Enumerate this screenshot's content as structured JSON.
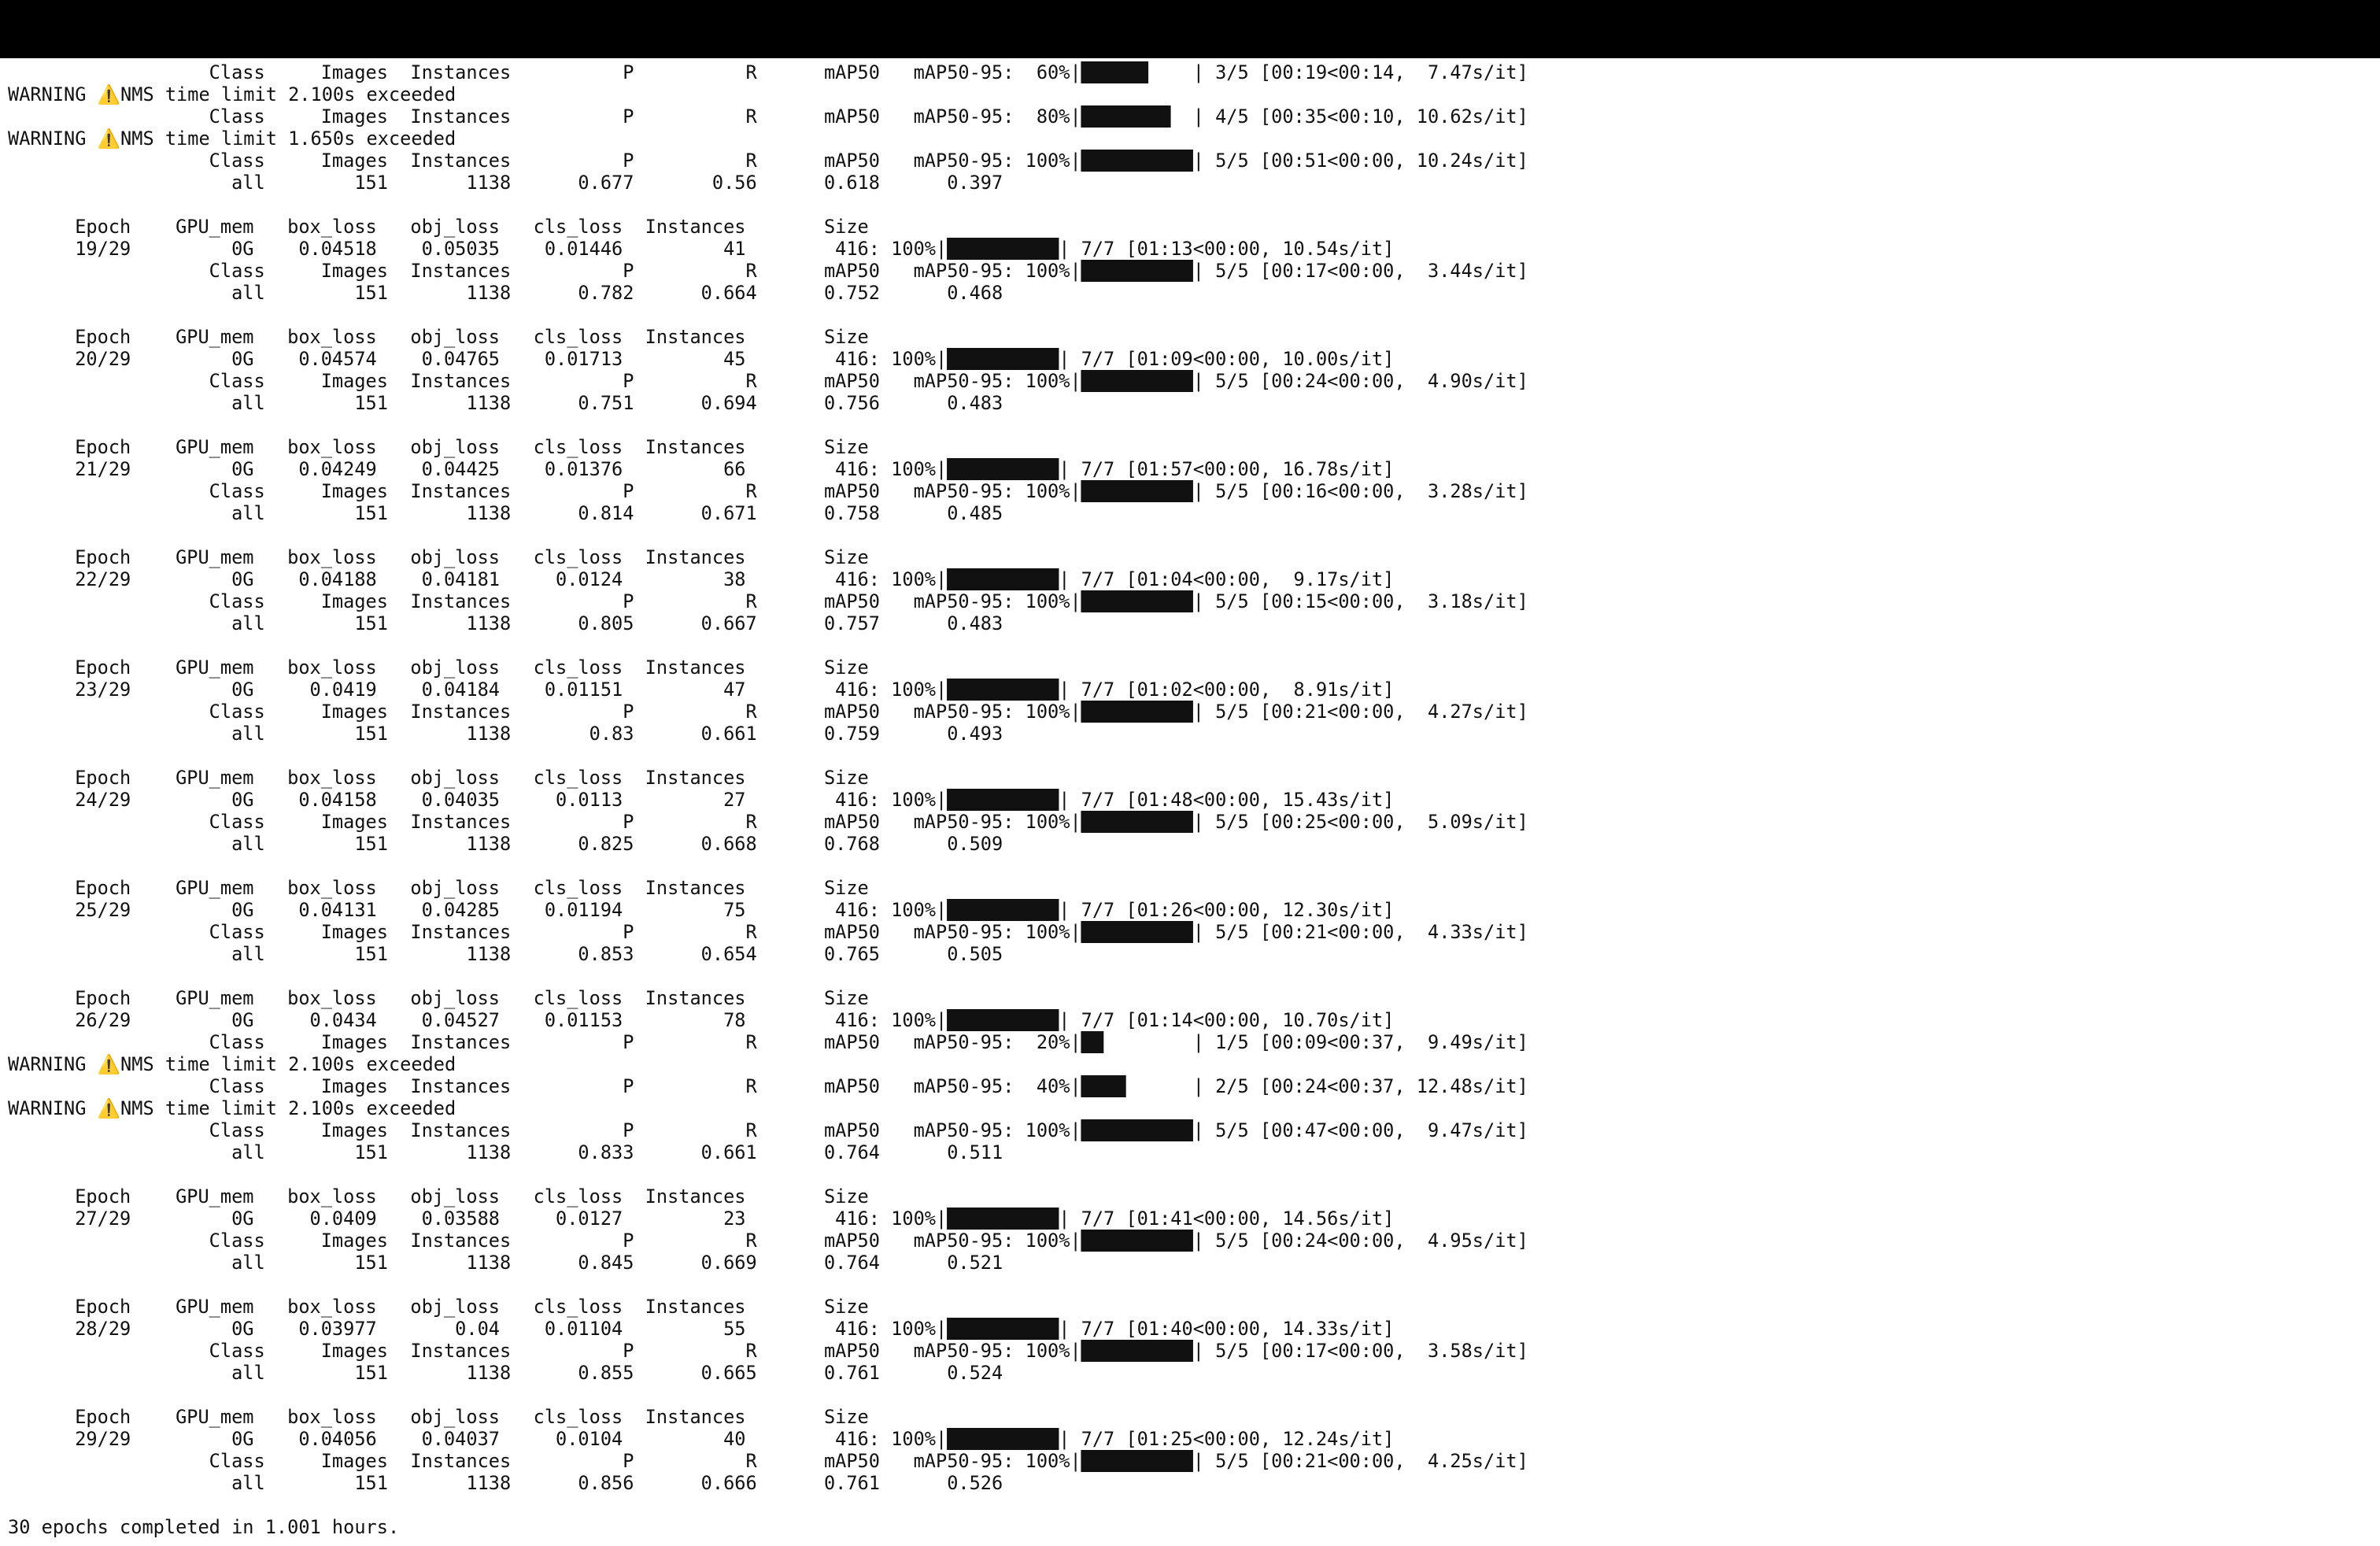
{
  "theme": {
    "topbar": "#000000",
    "background": "#ffffff",
    "text": "#111111",
    "warning_icon": "#e0a800"
  },
  "icons": {
    "warning": "warning-triangle-icon"
  },
  "lines": [
    {
      "text": "                  Class     Images  Instances          P          R      mAP50   mAP50-95:  60%|██████    | 3/5 [00:19<00:14,  7.47s/it]"
    },
    {
      "pre": "WARNING ",
      "icon": "⚠️",
      "text": "NMS time limit 2.100s exceeded"
    },
    {
      "text": "                  Class     Images  Instances          P          R      mAP50   mAP50-95:  80%|████████  | 4/5 [00:35<00:10, 10.62s/it]"
    },
    {
      "pre": "WARNING ",
      "icon": "⚠️",
      "text": "NMS time limit 1.650s exceeded"
    },
    {
      "text": "                  Class     Images  Instances          P          R      mAP50   mAP50-95: 100%|██████████| 5/5 [00:51<00:00, 10.24s/it]"
    },
    {
      "text": "                    all        151       1138      0.677       0.56      0.618      0.397"
    },
    {
      "text": ""
    },
    {
      "text": "      Epoch    GPU_mem   box_loss   obj_loss   cls_loss  Instances       Size"
    },
    {
      "text": "      19/29         0G    0.04518    0.05035    0.01446         41        416: 100%|██████████| 7/7 [01:13<00:00, 10.54s/it]"
    },
    {
      "text": "                  Class     Images  Instances          P          R      mAP50   mAP50-95: 100%|██████████| 5/5 [00:17<00:00,  3.44s/it]"
    },
    {
      "text": "                    all        151       1138      0.782      0.664      0.752      0.468"
    },
    {
      "text": ""
    },
    {
      "text": "      Epoch    GPU_mem   box_loss   obj_loss   cls_loss  Instances       Size"
    },
    {
      "text": "      20/29         0G    0.04574    0.04765    0.01713         45        416: 100%|██████████| 7/7 [01:09<00:00, 10.00s/it]"
    },
    {
      "text": "                  Class     Images  Instances          P          R      mAP50   mAP50-95: 100%|██████████| 5/5 [00:24<00:00,  4.90s/it]"
    },
    {
      "text": "                    all        151       1138      0.751      0.694      0.756      0.483"
    },
    {
      "text": ""
    },
    {
      "text": "      Epoch    GPU_mem   box_loss   obj_loss   cls_loss  Instances       Size"
    },
    {
      "text": "      21/29         0G    0.04249    0.04425    0.01376         66        416: 100%|██████████| 7/7 [01:57<00:00, 16.78s/it]"
    },
    {
      "text": "                  Class     Images  Instances          P          R      mAP50   mAP50-95: 100%|██████████| 5/5 [00:16<00:00,  3.28s/it]"
    },
    {
      "text": "                    all        151       1138      0.814      0.671      0.758      0.485"
    },
    {
      "text": ""
    },
    {
      "text": "      Epoch    GPU_mem   box_loss   obj_loss   cls_loss  Instances       Size"
    },
    {
      "text": "      22/29         0G    0.04188    0.04181     0.0124         38        416: 100%|██████████| 7/7 [01:04<00:00,  9.17s/it]"
    },
    {
      "text": "                  Class     Images  Instances          P          R      mAP50   mAP50-95: 100%|██████████| 5/5 [00:15<00:00,  3.18s/it]"
    },
    {
      "text": "                    all        151       1138      0.805      0.667      0.757      0.483"
    },
    {
      "text": ""
    },
    {
      "text": "      Epoch    GPU_mem   box_loss   obj_loss   cls_loss  Instances       Size"
    },
    {
      "text": "      23/29         0G     0.0419    0.04184    0.01151         47        416: 100%|██████████| 7/7 [01:02<00:00,  8.91s/it]"
    },
    {
      "text": "                  Class     Images  Instances          P          R      mAP50   mAP50-95: 100%|██████████| 5/5 [00:21<00:00,  4.27s/it]"
    },
    {
      "text": "                    all        151       1138       0.83      0.661      0.759      0.493"
    },
    {
      "text": ""
    },
    {
      "text": "      Epoch    GPU_mem   box_loss   obj_loss   cls_loss  Instances       Size"
    },
    {
      "text": "      24/29         0G    0.04158    0.04035     0.0113         27        416: 100%|██████████| 7/7 [01:48<00:00, 15.43s/it]"
    },
    {
      "text": "                  Class     Images  Instances          P          R      mAP50   mAP50-95: 100%|██████████| 5/5 [00:25<00:00,  5.09s/it]"
    },
    {
      "text": "                    all        151       1138      0.825      0.668      0.768      0.509"
    },
    {
      "text": ""
    },
    {
      "text": "      Epoch    GPU_mem   box_loss   obj_loss   cls_loss  Instances       Size"
    },
    {
      "text": "      25/29         0G    0.04131    0.04285    0.01194         75        416: 100%|██████████| 7/7 [01:26<00:00, 12.30s/it]"
    },
    {
      "text": "                  Class     Images  Instances          P          R      mAP50   mAP50-95: 100%|██████████| 5/5 [00:21<00:00,  4.33s/it]"
    },
    {
      "text": "                    all        151       1138      0.853      0.654      0.765      0.505"
    },
    {
      "text": ""
    },
    {
      "text": "      Epoch    GPU_mem   box_loss   obj_loss   cls_loss  Instances       Size"
    },
    {
      "text": "      26/29         0G     0.0434    0.04527    0.01153         78        416: 100%|██████████| 7/7 [01:14<00:00, 10.70s/it]"
    },
    {
      "text": "                  Class     Images  Instances          P          R      mAP50   mAP50-95:  20%|██        | 1/5 [00:09<00:37,  9.49s/it]"
    },
    {
      "pre": "WARNING ",
      "icon": "⚠️",
      "text": "NMS time limit 2.100s exceeded"
    },
    {
      "text": "                  Class     Images  Instances          P          R      mAP50   mAP50-95:  40%|████      | 2/5 [00:24<00:37, 12.48s/it]"
    },
    {
      "pre": "WARNING ",
      "icon": "⚠️",
      "text": "NMS time limit 2.100s exceeded"
    },
    {
      "text": "                  Class     Images  Instances          P          R      mAP50   mAP50-95: 100%|██████████| 5/5 [00:47<00:00,  9.47s/it]"
    },
    {
      "text": "                    all        151       1138      0.833      0.661      0.764      0.511"
    },
    {
      "text": ""
    },
    {
      "text": "      Epoch    GPU_mem   box_loss   obj_loss   cls_loss  Instances       Size"
    },
    {
      "text": "      27/29         0G     0.0409    0.03588     0.0127         23        416: 100%|██████████| 7/7 [01:41<00:00, 14.56s/it]"
    },
    {
      "text": "                  Class     Images  Instances          P          R      mAP50   mAP50-95: 100%|██████████| 5/5 [00:24<00:00,  4.95s/it]"
    },
    {
      "text": "                    all        151       1138      0.845      0.669      0.764      0.521"
    },
    {
      "text": ""
    },
    {
      "text": "      Epoch    GPU_mem   box_loss   obj_loss   cls_loss  Instances       Size"
    },
    {
      "text": "      28/29         0G    0.03977       0.04    0.01104         55        416: 100%|██████████| 7/7 [01:40<00:00, 14.33s/it]"
    },
    {
      "text": "                  Class     Images  Instances          P          R      mAP50   mAP50-95: 100%|██████████| 5/5 [00:17<00:00,  3.58s/it]"
    },
    {
      "text": "                    all        151       1138      0.855      0.665      0.761      0.524"
    },
    {
      "text": ""
    },
    {
      "text": "      Epoch    GPU_mem   box_loss   obj_loss   cls_loss  Instances       Size"
    },
    {
      "text": "      29/29         0G    0.04056    0.04037     0.0104         40        416: 100%|██████████| 7/7 [01:25<00:00, 12.24s/it]"
    },
    {
      "text": "                  Class     Images  Instances          P          R      mAP50   mAP50-95: 100%|██████████| 5/5 [00:21<00:00,  4.25s/it]"
    },
    {
      "text": "                    all        151       1138      0.856      0.666      0.761      0.526"
    },
    {
      "text": ""
    },
    {
      "text": "30 epochs completed in 1.001 hours."
    }
  ]
}
